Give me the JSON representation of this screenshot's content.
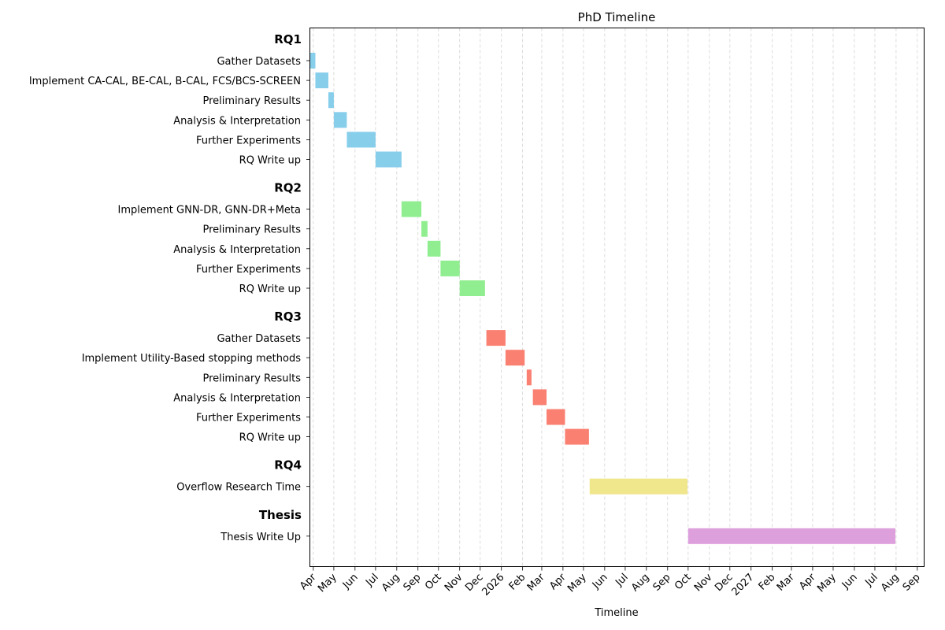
{
  "chart_data": {
    "type": "gantt",
    "title": "PhD Timeline",
    "xlabel": "Timeline",
    "ylabel": "",
    "xlim": [
      "2025-03-27",
      "2027-09-11"
    ],
    "grid": {
      "x": true,
      "y": false,
      "style": "dashed"
    },
    "x_tick_labels": [
      {
        "date": "2025-04-01",
        "label": "Apr"
      },
      {
        "date": "2025-05-01",
        "label": "May"
      },
      {
        "date": "2025-06-01",
        "label": "Jun"
      },
      {
        "date": "2025-07-01",
        "label": "Jul"
      },
      {
        "date": "2025-08-01",
        "label": "Aug"
      },
      {
        "date": "2025-09-01",
        "label": "Sep"
      },
      {
        "date": "2025-10-01",
        "label": "Oct"
      },
      {
        "date": "2025-11-01",
        "label": "Nov"
      },
      {
        "date": "2025-12-01",
        "label": "Dec"
      },
      {
        "date": "2026-01-01",
        "label": "2026"
      },
      {
        "date": "2026-02-01",
        "label": "Feb"
      },
      {
        "date": "2026-03-01",
        "label": "Mar"
      },
      {
        "date": "2026-04-01",
        "label": "Apr"
      },
      {
        "date": "2026-05-01",
        "label": "May"
      },
      {
        "date": "2026-06-01",
        "label": "Jun"
      },
      {
        "date": "2026-07-01",
        "label": "Jul"
      },
      {
        "date": "2026-08-01",
        "label": "Aug"
      },
      {
        "date": "2026-09-01",
        "label": "Sep"
      },
      {
        "date": "2026-10-01",
        "label": "Oct"
      },
      {
        "date": "2026-11-01",
        "label": "Nov"
      },
      {
        "date": "2026-12-01",
        "label": "Dec"
      },
      {
        "date": "2027-01-01",
        "label": "2027"
      },
      {
        "date": "2027-02-01",
        "label": "Feb"
      },
      {
        "date": "2027-03-01",
        "label": "Mar"
      },
      {
        "date": "2027-04-01",
        "label": "Apr"
      },
      {
        "date": "2027-05-01",
        "label": "May"
      },
      {
        "date": "2027-06-01",
        "label": "Jun"
      },
      {
        "date": "2027-07-01",
        "label": "Jul"
      },
      {
        "date": "2027-08-01",
        "label": "Aug"
      },
      {
        "date": "2027-09-01",
        "label": "Sep"
      }
    ],
    "groups": [
      {
        "name": "RQ1",
        "color": "#87CEEB",
        "tasks": [
          {
            "label": "Gather Datasets",
            "start": "2025-03-27",
            "end": "2025-04-04"
          },
          {
            "label": "Implement CA-CAL, BE-CAL, B-CAL, FCS/BCS-SCREEN",
            "start": "2025-04-04",
            "end": "2025-04-23"
          },
          {
            "label": "Preliminary Results",
            "start": "2025-04-23",
            "end": "2025-05-01"
          },
          {
            "label": "Analysis & Interpretation",
            "start": "2025-05-01",
            "end": "2025-05-20"
          },
          {
            "label": "Further Experiments",
            "start": "2025-05-20",
            "end": "2025-07-01"
          },
          {
            "label": "RQ Write up",
            "start": "2025-07-01",
            "end": "2025-08-08"
          }
        ]
      },
      {
        "name": "RQ2",
        "color": "#90EE90",
        "tasks": [
          {
            "label": "Implement GNN-DR, GNN-DR+Meta",
            "start": "2025-08-08",
            "end": "2025-09-06"
          },
          {
            "label": "Preliminary Results",
            "start": "2025-09-06",
            "end": "2025-09-15"
          },
          {
            "label": "Analysis & Interpretation",
            "start": "2025-09-15",
            "end": "2025-10-04"
          },
          {
            "label": "Further Experiments",
            "start": "2025-10-04",
            "end": "2025-11-01"
          },
          {
            "label": "RQ Write up",
            "start": "2025-11-01",
            "end": "2025-12-08"
          }
        ]
      },
      {
        "name": "RQ3",
        "color": "#FA8072",
        "tasks": [
          {
            "label": "Gather Datasets",
            "start": "2025-12-10",
            "end": "2026-01-07"
          },
          {
            "label": "Implement Utility-Based stopping methods",
            "start": "2026-01-07",
            "end": "2026-02-04"
          },
          {
            "label": "Preliminary Results",
            "start": "2026-02-07",
            "end": "2026-02-14"
          },
          {
            "label": "Analysis & Interpretation",
            "start": "2026-02-16",
            "end": "2026-03-08"
          },
          {
            "label": "Further Experiments",
            "start": "2026-03-08",
            "end": "2026-04-04"
          },
          {
            "label": "RQ Write up",
            "start": "2026-04-04",
            "end": "2026-05-09"
          }
        ]
      },
      {
        "name": "RQ4",
        "color": "#F0E68C",
        "tasks": [
          {
            "label": "Overflow Research Time",
            "start": "2026-05-10",
            "end": "2026-09-30"
          }
        ]
      },
      {
        "name": "Thesis",
        "color": "#DDA0DD",
        "tasks": [
          {
            "label": "Thesis Write Up",
            "start": "2026-10-01",
            "end": "2027-07-31"
          }
        ]
      }
    ]
  }
}
